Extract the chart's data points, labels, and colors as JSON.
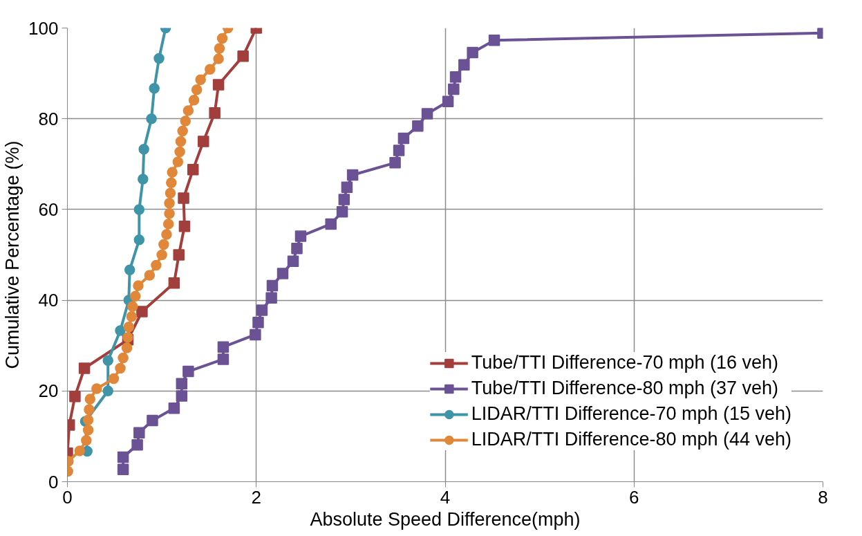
{
  "chart_data": {
    "type": "line",
    "xlabel": "Absolute Speed Difference(mph)",
    "ylabel": "Cumulative Percentage (%)",
    "xlim": [
      0,
      8
    ],
    "xticks": [
      0,
      2,
      4,
      6,
      8
    ],
    "ylim": [
      0,
      100
    ],
    "yticks": [
      0,
      20,
      40,
      60,
      80,
      100
    ],
    "grid": true,
    "legend": "bottom right",
    "line_style": "solid",
    "series": [
      {
        "name": "Tube/TTI Difference-70 mph (16 veh)",
        "color": "#a23f3d",
        "marker": "square",
        "x": [
          0,
          0.02,
          0.08,
          0.18,
          0.64,
          0.79,
          1.13,
          1.18,
          1.24,
          1.23,
          1.33,
          1.44,
          1.56,
          1.6,
          1.86,
          2.0
        ],
        "values": [
          6.3,
          12.5,
          18.8,
          25,
          31.3,
          37.5,
          43.8,
          50,
          56.3,
          62.5,
          68.8,
          75,
          81.3,
          87.5,
          93.8,
          100
        ]
      },
      {
        "name": "Tube/TTI Difference-80 mph (37 veh)",
        "color": "#6b5295",
        "marker": "square",
        "x": [
          0.59,
          0.59,
          0.74,
          0.76,
          0.9,
          1.13,
          1.21,
          1.21,
          1.28,
          1.65,
          1.65,
          1.99,
          2.02,
          2.06,
          2.16,
          2.17,
          2.28,
          2.39,
          2.43,
          2.47,
          2.79,
          2.91,
          2.93,
          2.96,
          3.02,
          3.47,
          3.51,
          3.56,
          3.71,
          3.81,
          4.03,
          4.09,
          4.11,
          4.2,
          4.29,
          4.52,
          8
        ],
        "values": [
          2.7,
          5.4,
          8.1,
          10.8,
          13.5,
          16.2,
          18.9,
          21.6,
          24.3,
          27.0,
          29.7,
          32.4,
          35.1,
          37.8,
          40.5,
          43.2,
          45.9,
          48.6,
          51.4,
          54.1,
          56.8,
          59.5,
          62.2,
          64.9,
          67.6,
          70.3,
          73.0,
          75.7,
          78.4,
          81.1,
          83.8,
          86.5,
          89.2,
          91.9,
          94.6,
          97.3,
          98.9
        ]
      },
      {
        "name": "LIDAR/TTI Difference-70 mph (15 veh)",
        "color": "#3f94a8",
        "marker": "circle",
        "x": [
          0.21,
          0.19,
          0.43,
          0.43,
          0.56,
          0.65,
          0.66,
          0.76,
          0.76,
          0.8,
          0.81,
          0.89,
          0.92,
          0.97,
          1.04
        ],
        "values": [
          6.7,
          13.3,
          20,
          26.7,
          33.3,
          40,
          46.7,
          53.3,
          60,
          66.7,
          73.3,
          80,
          86.7,
          93.3,
          100
        ]
      },
      {
        "name": "LIDAR/TTI Difference-80 mph (44 veh)",
        "color": "#e0873a",
        "marker": "circle",
        "x": [
          0.005,
          0.01,
          0.13,
          0.2,
          0.22,
          0.22,
          0.23,
          0.24,
          0.31,
          0.49,
          0.56,
          0.59,
          0.63,
          0.64,
          0.65,
          0.68,
          0.69,
          0.72,
          0.75,
          0.87,
          0.94,
          1.0,
          1.02,
          1.05,
          1.07,
          1.08,
          1.08,
          1.09,
          1.1,
          1.11,
          1.17,
          1.19,
          1.2,
          1.22,
          1.25,
          1.28,
          1.34,
          1.37,
          1.41,
          1.51,
          1.6,
          1.61,
          1.64,
          1.7
        ],
        "values": [
          2.3,
          4.5,
          6.8,
          9.1,
          11.4,
          13.6,
          15.9,
          18.2,
          20.5,
          22.7,
          25,
          27.3,
          29.5,
          31.8,
          34.1,
          36.4,
          38.6,
          40.9,
          43.2,
          45.5,
          47.7,
          50,
          52.3,
          54.5,
          56.8,
          59.1,
          61.4,
          63.6,
          65.9,
          68.2,
          70.5,
          72.7,
          75,
          77.3,
          79.5,
          81.8,
          84.1,
          86.4,
          88.6,
          90.9,
          93.2,
          95.5,
          97.7,
          100
        ]
      }
    ]
  }
}
